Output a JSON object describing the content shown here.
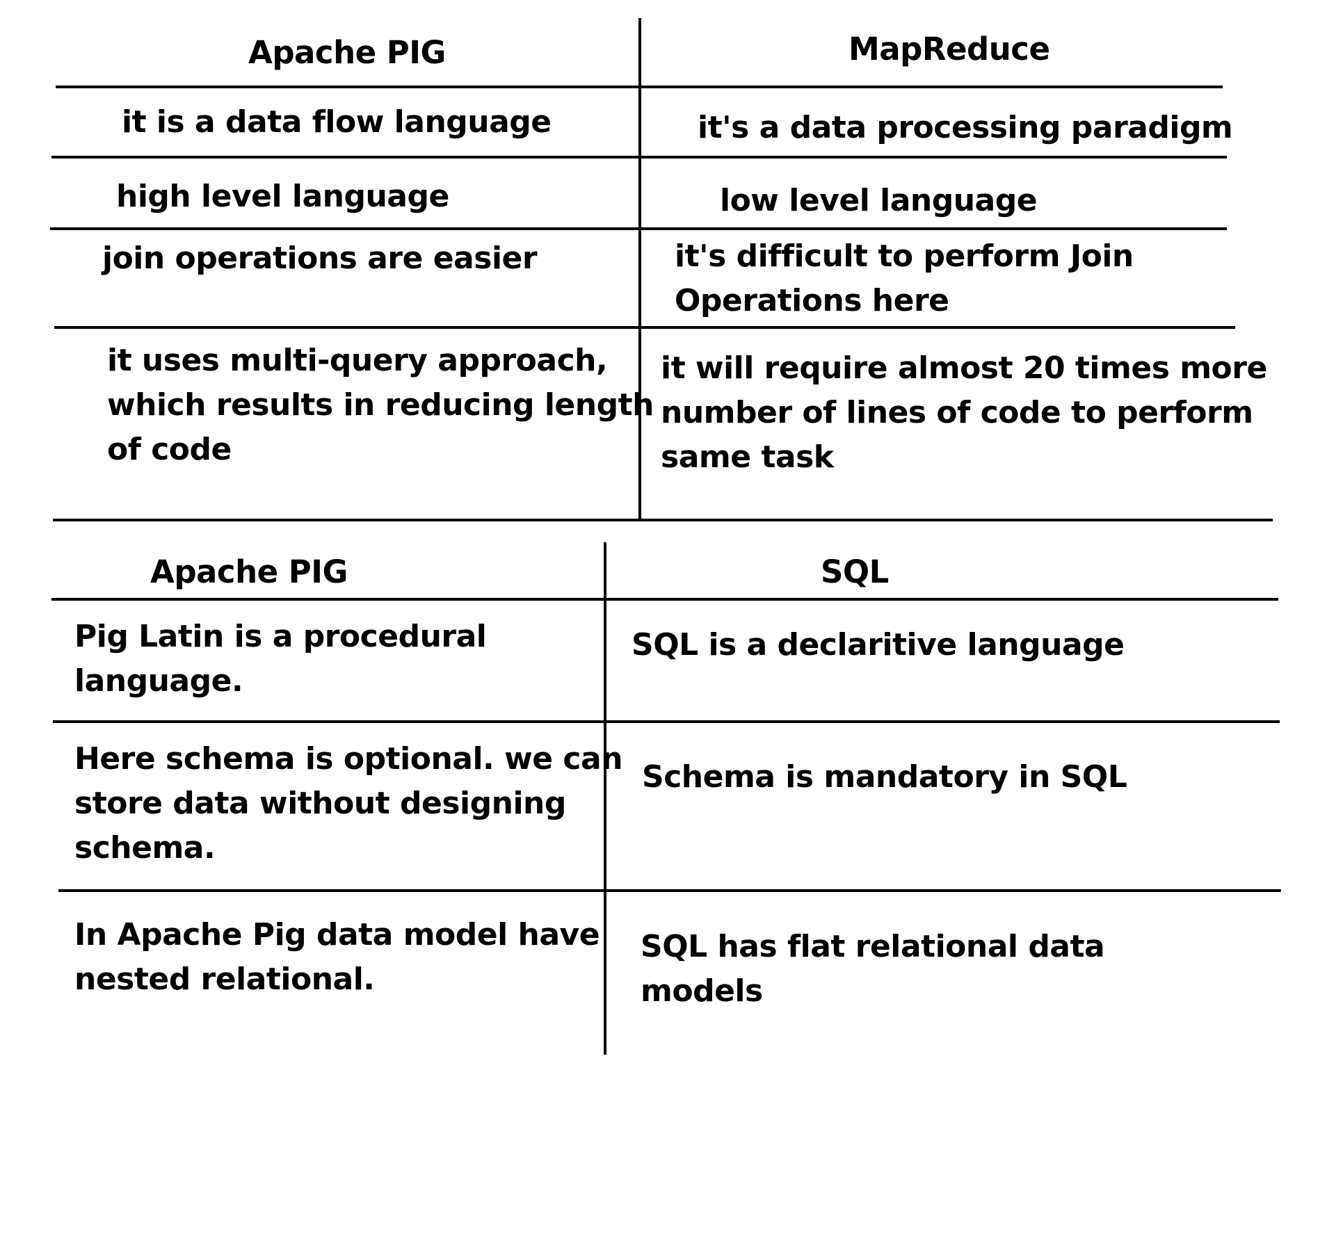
{
  "comparison_mapreduce": {
    "left_header": "Apache PIG",
    "right_header": "MapReduce",
    "rows": [
      {
        "left": [
          "it is a data flow language"
        ],
        "right": [
          "it's a data processing paradigm"
        ]
      },
      {
        "left": [
          "high level language"
        ],
        "right": [
          "low level language"
        ]
      },
      {
        "left": [
          "join operations are easier"
        ],
        "right": [
          "it's difficult to perform Join",
          "Operations here"
        ]
      },
      {
        "left": [
          "it uses multi-query approach,",
          "which results in reducing length",
          "of code"
        ],
        "right": [
          "it will require almost 20 times more",
          "number of lines of code to perform",
          "same task"
        ]
      }
    ]
  },
  "comparison_sql": {
    "left_header": "Apache PIG",
    "right_header": "SQL",
    "rows": [
      {
        "left": [
          "Pig Latin is a procedural",
          "language."
        ],
        "right": [
          "SQL is a declaritive language"
        ]
      },
      {
        "left": [
          "Here schema is optional. we can",
          "store data without designing",
          "schema."
        ],
        "right": [
          "Schema is mandatory in SQL"
        ]
      },
      {
        "left": [
          "In Apache Pig data model have",
          "nested relational."
        ],
        "right": [
          "SQL has flat relational data",
          "models"
        ]
      }
    ]
  }
}
